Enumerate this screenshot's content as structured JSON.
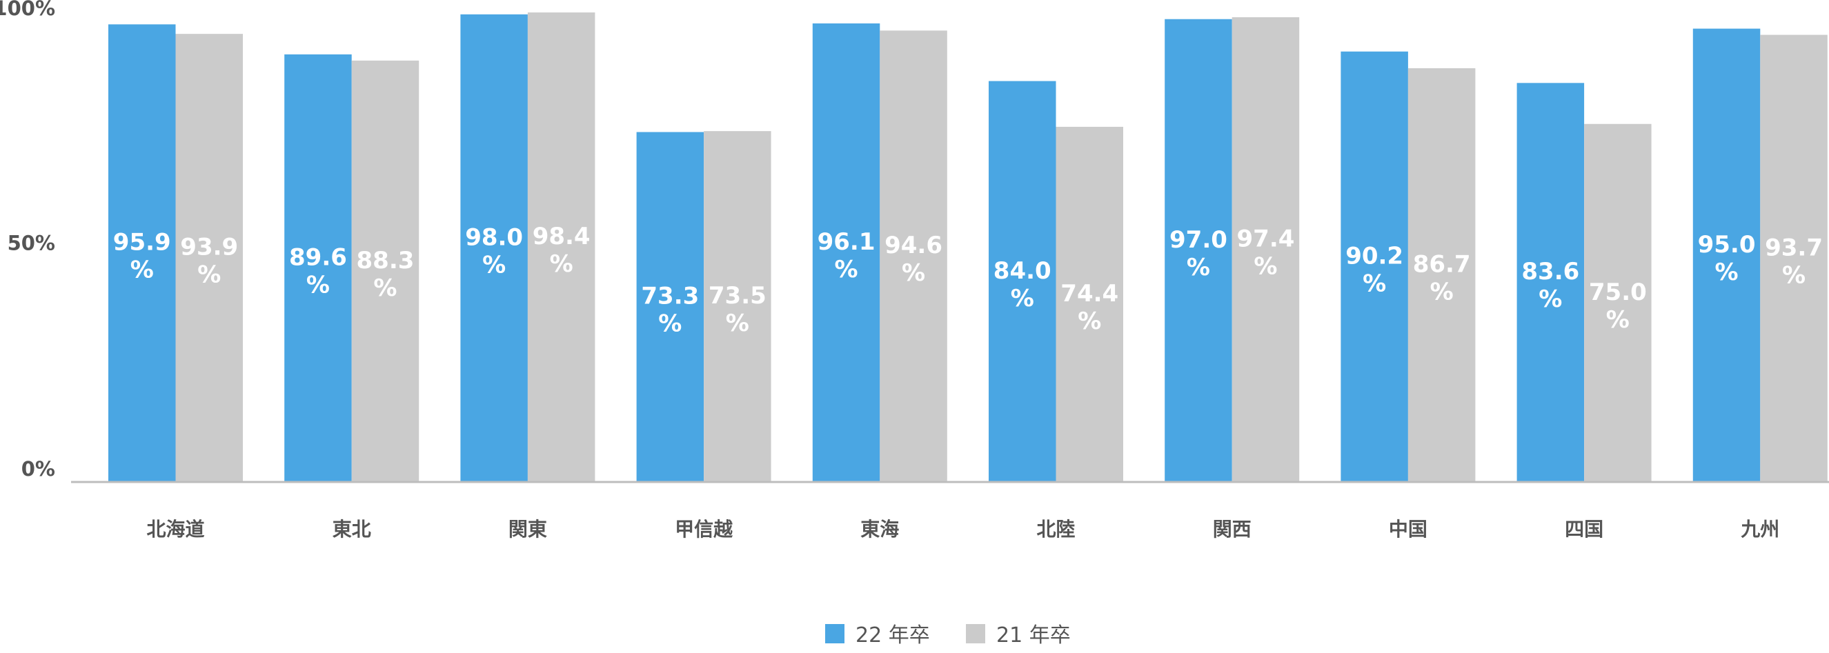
{
  "chart_data": {
    "type": "bar",
    "categories": [
      "北海道",
      "東北",
      "関東",
      "甲信越",
      "東海",
      "北陸",
      "関西",
      "中国",
      "四国",
      "九州"
    ],
    "series": [
      {
        "name": "22 年卒",
        "color": "#4aa6e3",
        "values": [
          95.9,
          89.6,
          98.0,
          73.3,
          96.1,
          84.0,
          97.0,
          90.2,
          83.6,
          95.0
        ]
      },
      {
        "name": "21 年卒",
        "color": "#cbcbcb",
        "values": [
          93.9,
          88.3,
          98.4,
          73.5,
          94.6,
          74.4,
          97.4,
          86.7,
          75.0,
          93.7
        ]
      }
    ],
    "data_labels": [
      [
        "95.9",
        "89.6",
        "98.0",
        "73.3",
        "96.1",
        "84.0",
        "97.0",
        "90.2",
        "83.6",
        "95.0"
      ],
      [
        "93.9",
        "88.3",
        "98.4",
        "73.5",
        "94.6",
        "74.4",
        "97.4",
        "86.7",
        "75.0",
        "93.7"
      ]
    ],
    "data_label_unit": "%",
    "yticks": [
      "0%",
      "50%",
      "100%"
    ],
    "ylim": [
      0,
      100
    ],
    "legend_position": "bottom-center",
    "grid": false
  }
}
